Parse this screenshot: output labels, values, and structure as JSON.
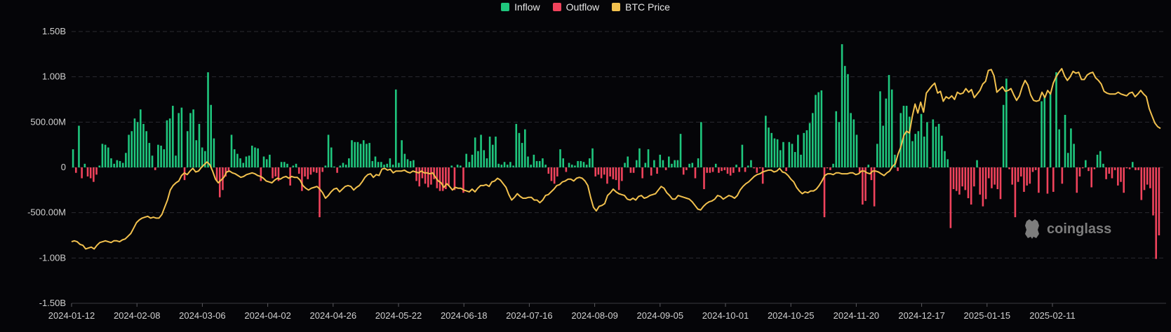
{
  "legend": [
    {
      "label": "Inflow",
      "color": "#1fc77e"
    },
    {
      "label": "Outflow",
      "color": "#f0435c"
    },
    {
      "label": "BTC Price",
      "color": "#f2c14e"
    }
  ],
  "watermark": "coinglass",
  "chart_data": {
    "type": "bar",
    "title": "",
    "ylim": [
      -1500000000,
      1500000000
    ],
    "y_ticks": [
      "1.50B",
      "1.00B",
      "500.00M",
      "0",
      "-500.00M",
      "-1.00B",
      "-1.50B"
    ],
    "x_ticks": [
      "2024-01-12",
      "2024-02-08",
      "2024-03-06",
      "2024-04-02",
      "2024-04-26",
      "2024-05-22",
      "2024-06-18",
      "2024-07-16",
      "2024-08-09",
      "2024-09-05",
      "2024-10-01",
      "2024-10-25",
      "2024-11-20",
      "2024-12-17",
      "2025-01-15",
      "2025-02-11"
    ],
    "grid": true,
    "legend_position": "top-center",
    "colors": {
      "inflow": "#1fc77e",
      "outflow": "#f0435c",
      "price": "#f2c14e"
    },
    "series": [
      {
        "name": "Inflow / Outflow",
        "values_millions": [
          200,
          -60,
          460,
          -120,
          40,
          -100,
          -120,
          -160,
          -80,
          20,
          260,
          250,
          220,
          100,
          40,
          80,
          70,
          50,
          160,
          360,
          400,
          540,
          500,
          640,
          480,
          400,
          270,
          130,
          -30,
          250,
          240,
          200,
          520,
          540,
          680,
          130,
          600,
          660,
          -140,
          400,
          600,
          640,
          300,
          480,
          220,
          180,
          1050,
          690,
          320,
          -150,
          -330,
          -250,
          -100,
          -40,
          360,
          200,
          150,
          100,
          50,
          120,
          130,
          240,
          220,
          210,
          -150,
          120,
          90,
          140,
          -120,
          -100,
          -150,
          60,
          60,
          40,
          -200,
          20,
          40,
          -70,
          -260,
          -100,
          -130,
          -80,
          -50,
          -60,
          -550,
          -50,
          20,
          360,
          220,
          10,
          -60,
          20,
          50,
          30,
          100,
          300,
          280,
          280,
          260,
          300,
          260,
          270,
          70,
          120,
          60,
          60,
          30,
          40,
          100,
          30,
          860,
          50,
          300,
          150,
          90,
          70,
          80,
          -150,
          -210,
          -120,
          -180,
          -220,
          -190,
          -130,
          -230,
          -260,
          -260,
          -240,
          -200,
          20,
          -250,
          30,
          20,
          -280,
          150,
          60,
          140,
          330,
          180,
          360,
          190,
          100,
          340,
          250,
          340,
          40,
          30,
          60,
          30,
          60,
          20,
          480,
          380,
          270,
          420,
          120,
          30,
          140,
          70,
          70,
          100,
          30,
          -70,
          -150,
          -180,
          -100,
          200,
          100,
          -50,
          50,
          30,
          20,
          70,
          70,
          60,
          30,
          100,
          210,
          -100,
          -80,
          -120,
          -80,
          -180,
          -100,
          -130,
          -140,
          -250,
          -150,
          50,
          120,
          -60,
          -60,
          80,
          210,
          -120,
          50,
          200,
          -90,
          80,
          -70,
          140,
          80,
          -30,
          120,
          40,
          80,
          80,
          370,
          -80,
          -30,
          40,
          50,
          -120,
          100,
          500,
          -240,
          -60,
          -60,
          -50,
          40,
          -60,
          -40,
          -30,
          -70,
          -90,
          -60,
          30,
          -50,
          250,
          -50,
          20,
          80,
          -10,
          -60,
          -10,
          -180,
          570,
          440,
          380,
          320,
          310,
          190,
          280,
          -40,
          280,
          260,
          170,
          360,
          140,
          380,
          410,
          490,
          600,
          800,
          830,
          850,
          -550,
          -10,
          -30,
          40,
          620,
          500,
          1360,
          1120,
          1030,
          600,
          530,
          360,
          -60,
          -410,
          -370,
          30,
          -140,
          -430,
          260,
          840,
          460,
          760,
          1020,
          860,
          140,
          -40,
          600,
          680,
          680,
          560,
          290,
          370,
          400,
          590,
          340,
          500,
          -10,
          530,
          450,
          480,
          350,
          180,
          90,
          -670,
          -240,
          -260,
          -300,
          -210,
          -250,
          -340,
          -410,
          -210,
          80,
          -300,
          -430,
          -350,
          -120,
          -230,
          -190,
          -240,
          -350,
          690,
          980,
          -20,
          -190,
          -550,
          -160,
          -100,
          -270,
          -200,
          -180,
          -50,
          -30,
          -280,
          730,
          780,
          -290,
          830,
          -270,
          1050,
          420,
          -180,
          580,
          160,
          430,
          260,
          -280,
          -100,
          -10,
          80,
          -40,
          -220,
          -20,
          140,
          180,
          40,
          -130,
          -70,
          -120,
          -30,
          -200,
          -160,
          -280,
          -10,
          -20,
          60,
          -30,
          -30,
          -360,
          -250,
          -190,
          -230,
          -530,
          -1010,
          -750
        ]
      },
      {
        "name": "BTC Price",
        "values_scaled": [
          -820,
          -810,
          -820,
          -850,
          -860,
          -900,
          -890,
          -880,
          -900,
          -860,
          -830,
          -820,
          -810,
          -820,
          -830,
          -810,
          -810,
          -820,
          -800,
          -790,
          -760,
          -730,
          -670,
          -610,
          -580,
          -560,
          -550,
          -540,
          -560,
          -550,
          -560,
          -560,
          -520,
          -440,
          -360,
          -250,
          -200,
          -170,
          -150,
          -90,
          -60,
          -80,
          -40,
          -10,
          -50,
          -40,
          0,
          30,
          60,
          30,
          -40,
          -130,
          -170,
          -140,
          -110,
          -50,
          -40,
          -60,
          -70,
          -90,
          -110,
          -100,
          -80,
          -70,
          -60,
          -70,
          -90,
          -100,
          -120,
          -150,
          -160,
          -170,
          -140,
          -120,
          -130,
          -110,
          -100,
          -120,
          -100,
          -110,
          -110,
          -140,
          -200,
          -230,
          -250,
          -230,
          -220,
          -210,
          -240,
          -280,
          -340,
          -310,
          -270,
          -240,
          -230,
          -270,
          -240,
          -210,
          -200,
          -210,
          -250,
          -220,
          -200,
          -160,
          -110,
          -80,
          -70,
          -110,
          -80,
          -90,
          -20,
          -10,
          -30,
          -20,
          -60,
          -40,
          -40,
          -40,
          -30,
          -50,
          -60,
          -40,
          -50,
          -60,
          -40,
          -60,
          -60,
          -70,
          -60,
          -110,
          -150,
          -170,
          -220,
          -180,
          -210,
          -250,
          -220,
          -230,
          -230,
          -250,
          -260,
          -270,
          -240,
          -270,
          -230,
          -200,
          -200,
          -190,
          -210,
          -160,
          -150,
          -120,
          -140,
          -180,
          -220,
          -300,
          -360,
          -330,
          -290,
          -320,
          -340,
          -340,
          -330,
          -330,
          -360,
          -360,
          -390,
          -360,
          -310,
          -300,
          -270,
          -240,
          -200,
          -190,
          -160,
          -150,
          -130,
          -130,
          -150,
          -120,
          -110,
          -120,
          -150,
          -200,
          -330,
          -440,
          -480,
          -430,
          -420,
          -400,
          -310,
          -280,
          -240,
          -270,
          -290,
          -300,
          -310,
          -350,
          -360,
          -340,
          -360,
          -320,
          -310,
          -340,
          -330,
          -310,
          -300,
          -290,
          -250,
          -210,
          -230,
          -280,
          -310,
          -350,
          -350,
          -310,
          -320,
          -330,
          -340,
          -350,
          -380,
          -420,
          -460,
          -470,
          -430,
          -400,
          -380,
          -370,
          -350,
          -310,
          -320,
          -350,
          -330,
          -310,
          -320,
          -340,
          -310,
          -250,
          -210,
          -180,
          -160,
          -130,
          -100,
          -80,
          -70,
          -50,
          -40,
          -30,
          -30,
          -50,
          -40,
          -10,
          -50,
          -60,
          -90,
          -130,
          -160,
          -220,
          -260,
          -290,
          -270,
          -280,
          -260,
          -260,
          -240,
          -200,
          -150,
          -90,
          -70,
          -70,
          -80,
          -60,
          -60,
          -70,
          -70,
          -70,
          -60,
          -60,
          -80,
          -70,
          -40,
          -40,
          -60,
          -70,
          -40,
          -40,
          -50,
          -70,
          -90,
          -60,
          -40,
          10,
          40,
          150,
          230,
          350,
          400,
          380,
          560,
          700,
          600,
          720,
          610,
          820,
          860,
          900,
          930,
          820,
          840,
          730,
          780,
          760,
          790,
          750,
          830,
          810,
          820,
          870,
          830,
          860,
          770,
          810,
          850,
          920,
          950,
          1070,
          1080,
          1010,
          830,
          860,
          890,
          840,
          850,
          870,
          800,
          740,
          790,
          890,
          960,
          910,
          800,
          740,
          730,
          740,
          830,
          770,
          850,
          810,
          930,
          1000,
          1050,
          1090,
          1010,
          960,
          1000,
          1060,
          1040,
          1050,
          970,
          970,
          1020,
          1040,
          1050,
          990,
          960,
          920,
          840,
          820,
          810,
          810,
          810,
          830,
          810,
          800,
          790,
          820,
          830,
          780,
          810,
          850,
          810,
          780,
          650,
          570,
          490,
          450,
          430
        ]
      }
    ]
  }
}
